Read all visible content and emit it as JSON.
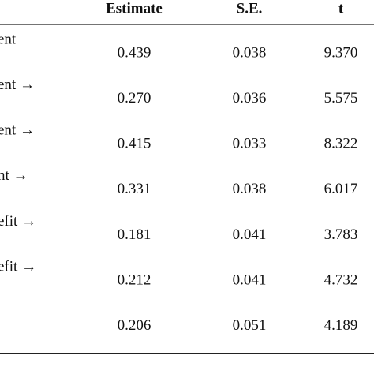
{
  "table": {
    "header": [
      "Estimate",
      "S.E.",
      "t"
    ],
    "rows": [
      {
        "label": "ent",
        "values": [
          "0.439",
          "0.038",
          "9.370"
        ]
      },
      {
        "label": "ent →",
        "values": [
          "0.270",
          "0.036",
          "5.575"
        ]
      },
      {
        "label": "ent →",
        "values": [
          "0.415",
          "0.033",
          "8.322"
        ]
      },
      {
        "label": "nt →",
        "values": [
          "0.331",
          "0.038",
          "6.017"
        ]
      },
      {
        "label": "efit →",
        "values": [
          "0.181",
          "0.041",
          "3.783"
        ]
      },
      {
        "label": "efit →",
        "values": [
          "0.212",
          "0.041",
          "4.732"
        ]
      },
      {
        "values": [
          "0.206",
          "0.051",
          "4.189"
        ]
      }
    ]
  }
}
